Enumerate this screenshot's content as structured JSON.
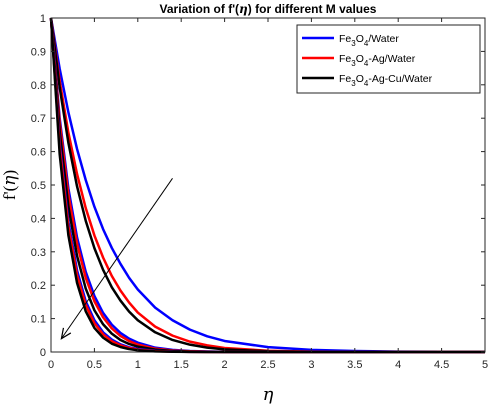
{
  "chart_data": {
    "type": "line",
    "title": "Variation of f'(η) for different M values",
    "title_parts": {
      "pre": "Variation of f'(",
      "eta": "η",
      "post": ") for different M values"
    },
    "xlabel": "η",
    "ylabel": "f'(η)",
    "ylabel_parts": {
      "pre": "f'(",
      "eta": "η",
      "post": ")"
    },
    "xlim": [
      0,
      5
    ],
    "ylim": [
      0,
      1
    ],
    "x_ticks": [
      0,
      0.5,
      1,
      1.5,
      2,
      2.5,
      3,
      3.5,
      4,
      4.5,
      5
    ],
    "x_tick_labels": [
      "0",
      "0.5",
      "1",
      "1.5",
      "2",
      "2.5",
      "3",
      "3.5",
      "4",
      "4.5",
      "5"
    ],
    "y_ticks": [
      0,
      0.1,
      0.2,
      0.3,
      0.4,
      0.5,
      0.6,
      0.7,
      0.8,
      0.9,
      1
    ],
    "y_tick_labels": [
      "0",
      "0.1",
      "0.2",
      "0.3",
      "0.4",
      "0.5",
      "0.6",
      "0.7",
      "0.8",
      "0.9",
      "1"
    ],
    "grid": false,
    "legend_position": "top-right",
    "legend": [
      {
        "parts": [
          "Fe",
          "3",
          "O",
          "4",
          "/Water"
        ],
        "color": "#0000ff"
      },
      {
        "parts": [
          "Fe",
          "3",
          "O",
          "4",
          "-Ag/Water"
        ],
        "color": "#ff0000"
      },
      {
        "parts": [
          "Fe",
          "3",
          "O",
          "4",
          "-Ag-Cu/Water"
        ],
        "color": "#000000"
      }
    ],
    "x": [
      0,
      0.1,
      0.2,
      0.3,
      0.4,
      0.5,
      0.6,
      0.7,
      0.8,
      0.9,
      1.0,
      1.2,
      1.4,
      1.6,
      1.8,
      2.0,
      2.5,
      3.0,
      3.5,
      4.0,
      4.5,
      5.0
    ],
    "series": [
      {
        "color": "#0000ff",
        "values": [
          1.0,
          0.848,
          0.718,
          0.608,
          0.515,
          0.435,
          0.368,
          0.312,
          0.264,
          0.222,
          0.187,
          0.133,
          0.095,
          0.067,
          0.047,
          0.033,
          0.0145,
          0.0063,
          0.003,
          0.0013,
          0.0006,
          0.0
        ]
      },
      {
        "color": "#ff0000",
        "values": [
          1.0,
          0.811,
          0.657,
          0.533,
          0.431,
          0.349,
          0.283,
          0.228,
          0.184,
          0.148,
          0.118,
          0.076,
          0.049,
          0.031,
          0.02,
          0.012,
          0.0037,
          0.0011,
          0.0004,
          0.0001,
          0.0,
          0.0
        ]
      },
      {
        "color": "#000000",
        "values": [
          1.0,
          0.792,
          0.627,
          0.496,
          0.393,
          0.311,
          0.246,
          0.194,
          0.154,
          0.121,
          0.095,
          0.059,
          0.036,
          0.022,
          0.013,
          0.008,
          0.0022,
          0.0006,
          0.0002,
          0.0,
          0.0,
          0.0
        ]
      },
      {
        "color": "#0000ff",
        "values": [
          1.0,
          0.7,
          0.49,
          0.343,
          0.24,
          0.168,
          0.117,
          0.082,
          0.057,
          0.04,
          0.028,
          0.013,
          0.0065,
          0.0031,
          0.0015,
          0.0007,
          0.0001,
          0.0,
          0.0,
          0.0,
          0.0,
          0.0
        ]
      },
      {
        "color": "#ff0000",
        "values": [
          1.0,
          0.687,
          0.472,
          0.324,
          0.222,
          0.152,
          0.104,
          0.071,
          0.048,
          0.033,
          0.022,
          0.01,
          0.0045,
          0.0021,
          0.001,
          0.0004,
          0.0,
          0.0,
          0.0,
          0.0,
          0.0,
          0.0
        ]
      },
      {
        "color": "#000000",
        "values": [
          1.0,
          0.66,
          0.436,
          0.288,
          0.19,
          0.125,
          0.083,
          0.055,
          0.036,
          0.024,
          0.016,
          0.007,
          0.003,
          0.0013,
          0.0006,
          0.0002,
          0.0,
          0.0,
          0.0,
          0.0,
          0.0,
          0.0
        ]
      },
      {
        "color": "#0000ff",
        "values": [
          1.0,
          0.625,
          0.39,
          0.244,
          0.152,
          0.095,
          0.059,
          0.037,
          0.023,
          0.014,
          0.009,
          0.0035,
          0.0014,
          0.0005,
          0.0002,
          0.0,
          0.0,
          0.0,
          0.0,
          0.0,
          0.0,
          0.0
        ]
      },
      {
        "color": "#ff0000",
        "values": [
          1.0,
          0.613,
          0.376,
          0.23,
          0.141,
          0.086,
          0.053,
          0.032,
          0.02,
          0.012,
          0.0072,
          0.0027,
          0.001,
          0.0004,
          0.0001,
          0.0,
          0.0,
          0.0,
          0.0,
          0.0,
          0.0,
          0.0
        ]
      },
      {
        "color": "#000000",
        "values": [
          1.0,
          0.592,
          0.35,
          0.207,
          0.122,
          0.072,
          0.043,
          0.025,
          0.015,
          0.0088,
          0.0052,
          0.0018,
          0.0006,
          0.0002,
          0.0,
          0.0,
          0.0,
          0.0,
          0.0,
          0.0,
          0.0,
          0.0
        ]
      }
    ],
    "arrow": {
      "from": [
        1.4,
        0.52
      ],
      "to": [
        0.12,
        0.04
      ]
    }
  }
}
